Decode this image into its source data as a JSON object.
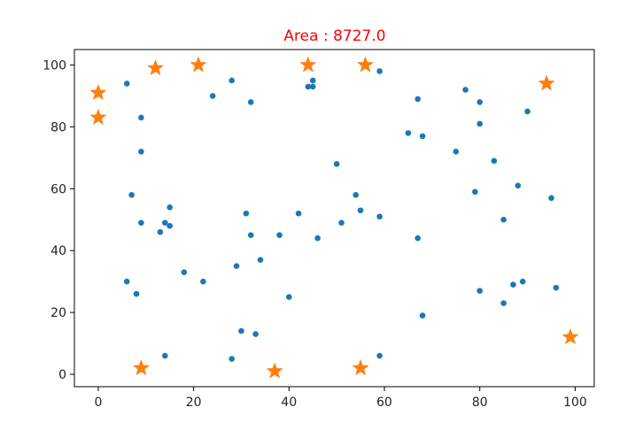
{
  "chart_data": {
    "type": "scatter",
    "title": "Area : 8727.0",
    "title_color": "#ff0000",
    "xlim": [
      -5,
      104
    ],
    "ylim": [
      -4,
      105
    ],
    "xticks": [
      0,
      20,
      40,
      60,
      80,
      100
    ],
    "yticks": [
      0,
      20,
      40,
      60,
      80,
      100
    ],
    "grid": false,
    "series": [
      {
        "marker": "circle",
        "color": "#1f77b4",
        "points": [
          [
            6,
            94
          ],
          [
            9,
            83
          ],
          [
            9,
            72
          ],
          [
            7,
            58
          ],
          [
            9,
            49
          ],
          [
            6,
            30
          ],
          [
            8,
            26
          ],
          [
            13,
            46
          ],
          [
            14,
            49
          ],
          [
            15,
            48
          ],
          [
            15,
            54
          ],
          [
            14,
            6
          ],
          [
            18,
            33
          ],
          [
            22,
            30
          ],
          [
            24,
            90
          ],
          [
            28,
            95
          ],
          [
            28,
            5
          ],
          [
            29,
            35
          ],
          [
            30,
            14
          ],
          [
            31,
            52
          ],
          [
            32,
            88
          ],
          [
            32,
            45
          ],
          [
            33,
            13
          ],
          [
            34,
            37
          ],
          [
            38,
            45
          ],
          [
            40,
            25
          ],
          [
            42,
            52
          ],
          [
            44,
            93
          ],
          [
            45,
            93
          ],
          [
            45,
            95
          ],
          [
            46,
            44
          ],
          [
            50,
            68
          ],
          [
            51,
            49
          ],
          [
            54,
            58
          ],
          [
            55,
            53
          ],
          [
            59,
            98
          ],
          [
            59,
            51
          ],
          [
            59,
            6
          ],
          [
            65,
            78
          ],
          [
            67,
            89
          ],
          [
            67,
            44
          ],
          [
            68,
            77
          ],
          [
            68,
            19
          ],
          [
            75,
            72
          ],
          [
            77,
            92
          ],
          [
            79,
            59
          ],
          [
            80,
            88
          ],
          [
            80,
            81
          ],
          [
            80,
            27
          ],
          [
            83,
            69
          ],
          [
            85,
            50
          ],
          [
            85,
            23
          ],
          [
            87,
            29
          ],
          [
            88,
            61
          ],
          [
            89,
            30
          ],
          [
            90,
            85
          ],
          [
            95,
            57
          ],
          [
            96,
            28
          ]
        ]
      },
      {
        "marker": "star",
        "color": "#ff7f0e",
        "points": [
          [
            0,
            91
          ],
          [
            0,
            83
          ],
          [
            12,
            99
          ],
          [
            21,
            100
          ],
          [
            44,
            100
          ],
          [
            56,
            100
          ],
          [
            94,
            94
          ],
          [
            99,
            12
          ],
          [
            55,
            2
          ],
          [
            37,
            1
          ],
          [
            9,
            2
          ]
        ]
      }
    ]
  }
}
